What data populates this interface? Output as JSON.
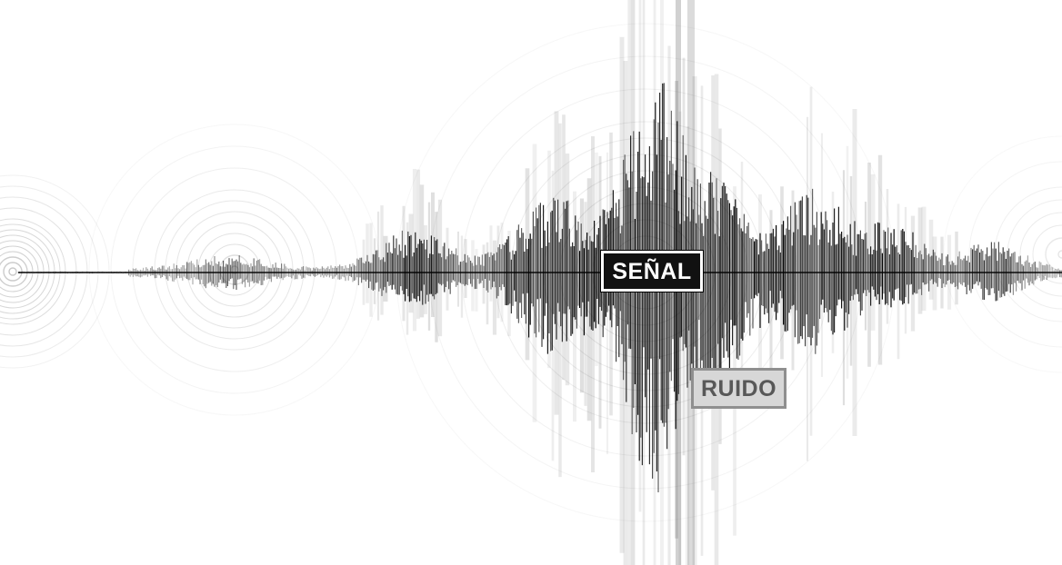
{
  "labels": {
    "signal": "SEÑAL",
    "noise": "RUIDO"
  },
  "colors": {
    "background": "#ffffff",
    "waveform": "#000000",
    "rings": "#9a9a9a",
    "signal_box_fill": "#111111",
    "signal_box_text": "#ffffff",
    "noise_box_fill": "#d7d7d7",
    "noise_box_text": "#585858"
  },
  "icons": {
    "waveform": "seismic-wave",
    "rings": "concentric-ripples"
  }
}
